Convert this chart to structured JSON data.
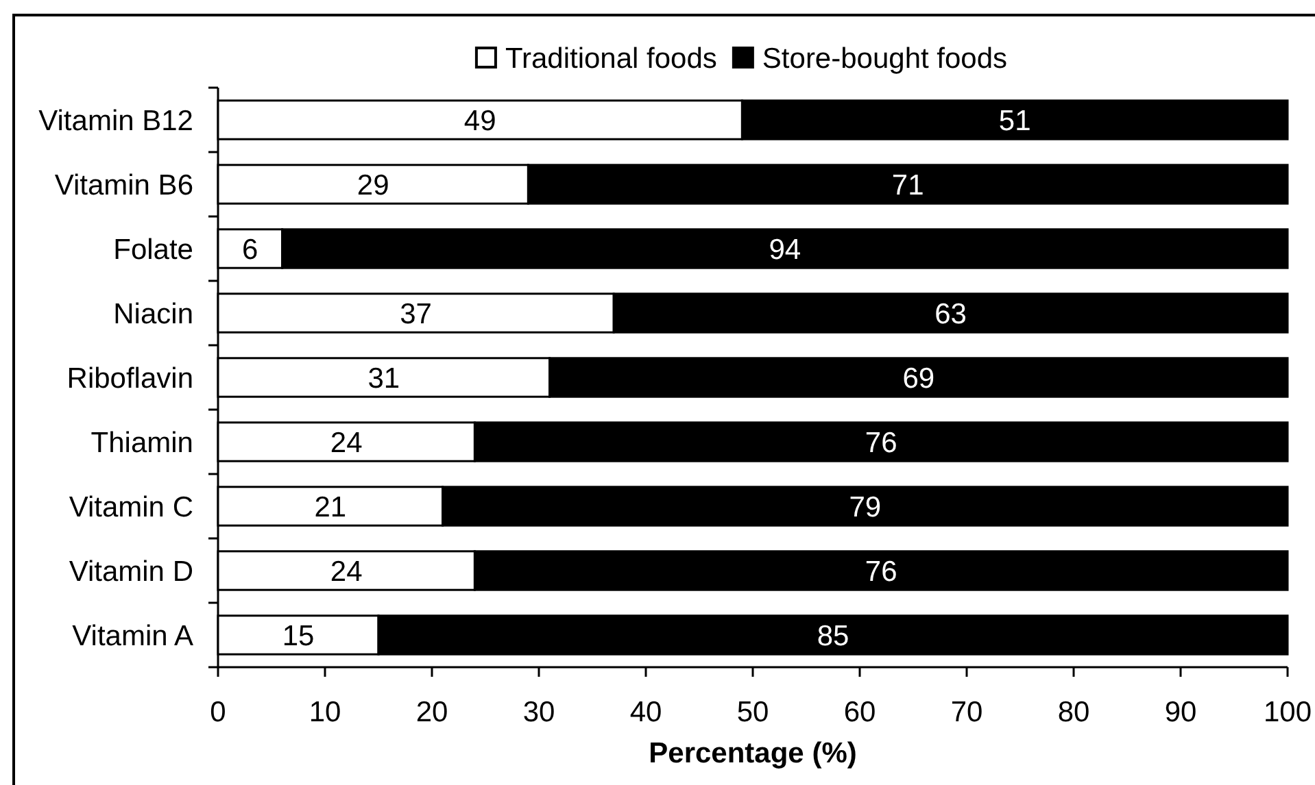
{
  "chart_data": {
    "type": "bar",
    "orientation": "horizontal",
    "stacked": true,
    "categories": [
      "Vitamin B12",
      "Vitamin B6",
      "Folate",
      "Niacin",
      "Riboflavin",
      "Thiamin",
      "Vitamin C",
      "Vitamin D",
      "Vitamin A"
    ],
    "series": [
      {
        "name": "Traditional foods",
        "color": "#ffffff",
        "values": [
          49,
          29,
          6,
          37,
          31,
          24,
          21,
          24,
          15
        ]
      },
      {
        "name": "Store-bought foods",
        "color": "#000000",
        "values": [
          51,
          71,
          94,
          63,
          69,
          76,
          79,
          76,
          85
        ]
      }
    ],
    "xlabel": "Percentage (%)",
    "xlim": [
      0,
      100
    ],
    "xticks": [
      0,
      10,
      20,
      30,
      40,
      50,
      60,
      70,
      80,
      90,
      100
    ],
    "data_labels": true,
    "legend": "top",
    "grid": false
  }
}
